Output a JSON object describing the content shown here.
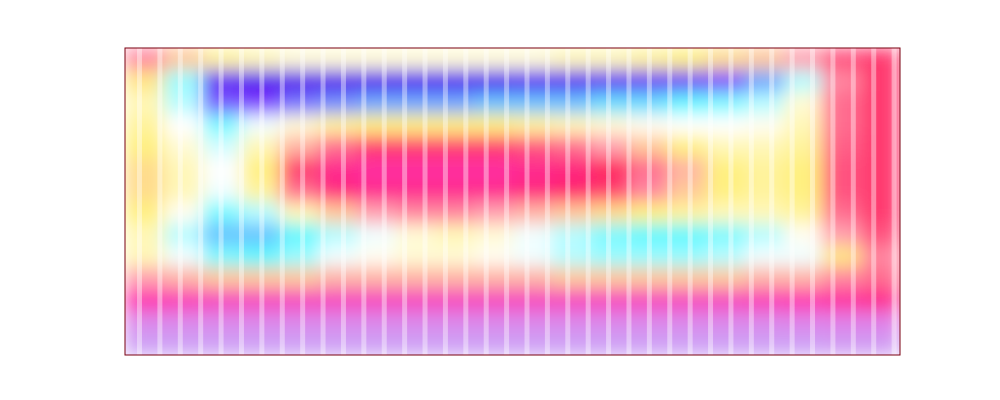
{
  "chart_data": {
    "type": "heatmap",
    "tick_labels": false,
    "zlim": [
      0,
      1
    ],
    "cells": [
      [
        0.36,
        0.42,
        0.48,
        0.5,
        0.52,
        0.52,
        0.52,
        0.52,
        0.52,
        0.52,
        0.52,
        0.5,
        0.5,
        0.48,
        0.46,
        0.44,
        0.42,
        0.38,
        0.32,
        0.3
      ],
      [
        0.45,
        0.62,
        0.88,
        0.92,
        0.94,
        0.94,
        0.93,
        0.92,
        0.92,
        0.92,
        0.9,
        0.9,
        0.88,
        0.86,
        0.84,
        0.8,
        0.72,
        0.6,
        0.36,
        0.3
      ],
      [
        0.5,
        0.6,
        0.78,
        0.8,
        0.76,
        0.74,
        0.72,
        0.72,
        0.72,
        0.7,
        0.7,
        0.7,
        0.68,
        0.68,
        0.66,
        0.64,
        0.6,
        0.52,
        0.34,
        0.3
      ],
      [
        0.48,
        0.55,
        0.64,
        0.56,
        0.52,
        0.48,
        0.46,
        0.46,
        0.46,
        0.46,
        0.48,
        0.5,
        0.52,
        0.54,
        0.55,
        0.55,
        0.54,
        0.5,
        0.34,
        0.3
      ],
      [
        0.46,
        0.52,
        0.58,
        0.5,
        0.4,
        0.34,
        0.3,
        0.3,
        0.3,
        0.3,
        0.32,
        0.34,
        0.38,
        0.42,
        0.46,
        0.5,
        0.5,
        0.48,
        0.33,
        0.3
      ],
      [
        0.44,
        0.5,
        0.55,
        0.46,
        0.3,
        0.22,
        0.2,
        0.2,
        0.2,
        0.2,
        0.22,
        0.24,
        0.28,
        0.34,
        0.4,
        0.46,
        0.48,
        0.46,
        0.32,
        0.3
      ],
      [
        0.44,
        0.5,
        0.56,
        0.48,
        0.34,
        0.24,
        0.22,
        0.22,
        0.22,
        0.22,
        0.24,
        0.26,
        0.3,
        0.36,
        0.42,
        0.46,
        0.48,
        0.46,
        0.32,
        0.3
      ],
      [
        0.46,
        0.54,
        0.64,
        0.6,
        0.5,
        0.42,
        0.38,
        0.36,
        0.36,
        0.38,
        0.4,
        0.42,
        0.44,
        0.46,
        0.48,
        0.5,
        0.5,
        0.48,
        0.34,
        0.3
      ],
      [
        0.5,
        0.6,
        0.7,
        0.7,
        0.66,
        0.6,
        0.56,
        0.52,
        0.5,
        0.52,
        0.56,
        0.6,
        0.64,
        0.66,
        0.66,
        0.64,
        0.6,
        0.54,
        0.38,
        0.32
      ],
      [
        0.5,
        0.56,
        0.64,
        0.66,
        0.62,
        0.56,
        0.54,
        0.52,
        0.52,
        0.54,
        0.56,
        0.6,
        0.62,
        0.62,
        0.62,
        0.6,
        0.56,
        0.56,
        0.45,
        0.36
      ],
      [
        0.38,
        0.4,
        0.42,
        0.42,
        0.42,
        0.4,
        0.4,
        0.4,
        0.4,
        0.4,
        0.4,
        0.42,
        0.42,
        0.42,
        0.42,
        0.42,
        0.4,
        0.4,
        0.36,
        0.34
      ],
      [
        0.18,
        0.17,
        0.16,
        0.16,
        0.16,
        0.16,
        0.16,
        0.16,
        0.16,
        0.16,
        0.16,
        0.16,
        0.16,
        0.16,
        0.16,
        0.16,
        0.17,
        0.18,
        0.2,
        0.22
      ],
      [
        0.08,
        0.08,
        0.08,
        0.08,
        0.08,
        0.08,
        0.08,
        0.08,
        0.08,
        0.08,
        0.08,
        0.08,
        0.08,
        0.08,
        0.08,
        0.08,
        0.08,
        0.09,
        0.1,
        0.1
      ],
      [
        0.02,
        0.02,
        0.02,
        0.02,
        0.02,
        0.02,
        0.02,
        0.02,
        0.02,
        0.02,
        0.02,
        0.02,
        0.02,
        0.02,
        0.02,
        0.02,
        0.02,
        0.02,
        0.03,
        0.03
      ]
    ]
  }
}
